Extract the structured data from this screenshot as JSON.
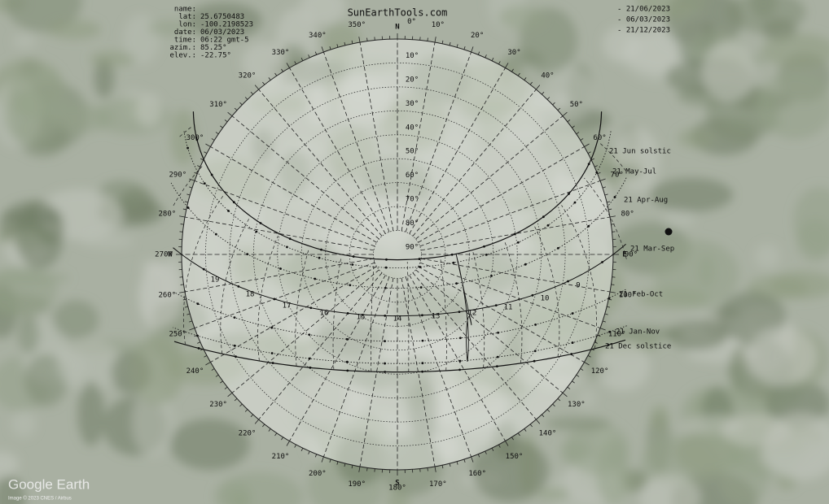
{
  "header": {
    "title": "SunEarthTools.com"
  },
  "info": [
    {
      "key": "name:"
    },
    {
      "key": "lat:",
      "value": "25.6750483"
    },
    {
      "key": "lon:",
      "value": "-100.2198523"
    },
    {
      "key": "date:",
      "value": "06/03/2023"
    },
    {
      "key": "time:",
      "value": "06:22 gmt-5"
    },
    {
      "key": "azim.:",
      "value": "85.25°"
    },
    {
      "key": "elev.:",
      "value": "-22.75°"
    }
  ],
  "legend": [
    "- 21/06/2023",
    "- 06/03/2023",
    "- 21/12/2023"
  ],
  "compass": {
    "north": "N",
    "south": "S",
    "west": "W",
    "east": "E"
  },
  "azimuth_labels": [
    "0°",
    "10°",
    "20°",
    "30°",
    "40°",
    "50°",
    "60°",
    "70°",
    "80°",
    "90°",
    "100°",
    "110°",
    "120°",
    "130°",
    "140°",
    "150°",
    "160°",
    "170°",
    "180°",
    "190°",
    "200°",
    "210°",
    "220°",
    "230°",
    "240°",
    "250°",
    "260°",
    "270°",
    "280°",
    "290°",
    "300°",
    "310°",
    "320°",
    "330°",
    "340°",
    "350°"
  ],
  "elevation_labels": [
    "10°",
    "20°",
    "30°",
    "40°",
    "50°",
    "60°",
    "70°",
    "80°",
    "90°"
  ],
  "curve_labels": [
    "21 Jun  solstic",
    "21 May-Jul",
    "21 Apr-Aug",
    "21 Mar-Sep",
    "21 Feb-Oct",
    "21 Jan-Nov",
    "21 Dec  solstice"
  ],
  "hour_labels": [
    "19",
    "18",
    "17",
    "16",
    "15",
    "14",
    "13",
    "12",
    "11",
    "10",
    "9"
  ],
  "watermark": "Google Earth",
  "copyright": "Image © 2023 CNES / Airbus"
}
